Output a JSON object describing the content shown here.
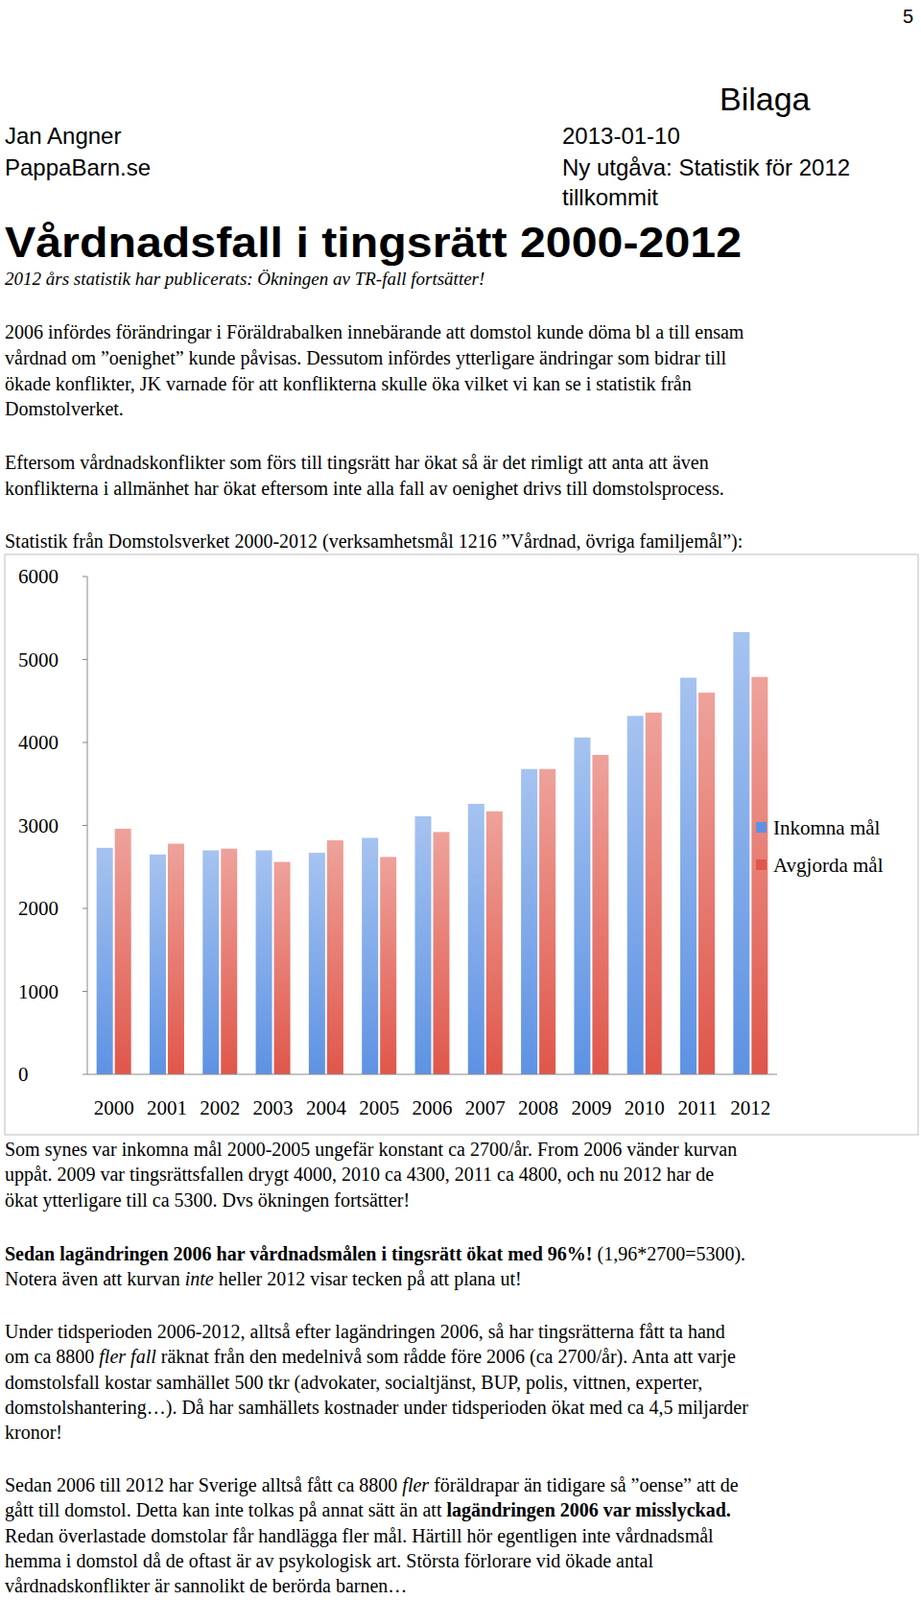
{
  "page_number": "5",
  "header": {
    "annex": "Bilaga",
    "author": "Jan Angner",
    "site": "PappaBarn.se",
    "date": "2013-01-10",
    "edition": [
      "Ny utgåva: Statistik för 2012",
      "tillkommit"
    ]
  },
  "title": "Vårdnadsfall i tingsrätt 2000-2012",
  "subtitle": "2012 års statistik har publicerats: Ökningen av TR-fall fortsätter!",
  "intro": [
    [
      [
        "2006 infördes förändringar i Föräldrabalken innebärande att domstol kunde döma bl a till ensam"
      ],
      [
        "vårdnad om ”oenighet” kunde påvisas. Dessutom infördes ytterligare ändringar som bidrar till"
      ],
      [
        "ökade konflikter, JK varnade för att konflikterna skulle öka vilket vi kan se i statistik från"
      ],
      [
        "Domstolverket."
      ]
    ],
    [
      [
        "Eftersom vårdnadskonflikter som förs till tingsrätt har ökat så är det rimligt att anta att även"
      ],
      [
        "konflikterna i allmänhet har ökat eftersom inte alla fall av oenighet drivs till domstolsprocess."
      ]
    ]
  ],
  "chart_data": {
    "type": "bar",
    "title": "Statistik från Domstolsverket 2000-2012 (verksamhetsmål 1216 ”Vårdnad, övriga familjemål”):",
    "categories": [
      "2000",
      "2001",
      "2002",
      "2003",
      "2004",
      "2005",
      "2006",
      "2007",
      "2008",
      "2009",
      "2010",
      "2011",
      "2012"
    ],
    "series": [
      {
        "name": "Inkomna mål",
        "color": "#5d92e3",
        "values": [
          2730,
          2650,
          2700,
          2700,
          2670,
          2850,
          3110,
          3260,
          3680,
          4060,
          4320,
          4780,
          5330
        ]
      },
      {
        "name": "Avgjorda mål",
        "color": "#e0564a",
        "values": [
          2960,
          2780,
          2720,
          2560,
          2820,
          2620,
          2920,
          3170,
          3680,
          3850,
          4360,
          4600,
          4790
        ]
      }
    ],
    "ylim": [
      0,
      6000
    ],
    "yticks": [
      0,
      1000,
      2000,
      3000,
      4000,
      5000,
      6000
    ],
    "grid": false,
    "legend": "right"
  },
  "analysis": [
    [
      [
        "Som synes var inkomna mål 2000-2005 ungefär konstant ca 2700/år. From 2006 vänder kurvan"
      ],
      [
        "uppåt. 2009 var tingsrättsfallen drygt 4000, 2010 ca 4300, 2011 ca 4800, och nu 2012 har de"
      ],
      [
        "ökat ytterligare till ca 5300. Dvs ökningen fortsätter!"
      ]
    ],
    [
      [
        {
          "text": "Sedan lagändringen 2006 har vårdnadsmålen i tingsrätt ökat med 96%!",
          "style": "bold"
        },
        " (1,96*2700=5300)."
      ],
      [
        "Notera även att kurvan ",
        {
          "text": "inte",
          "style": "italic"
        },
        " heller 2012 visar tecken på att plana ut!"
      ]
    ],
    [
      [
        "Under tidsperioden 2006-2012, alltså efter lagändringen 2006, så har tingsrätterna fått ta hand"
      ],
      [
        "om ca 8800 ",
        {
          "text": "fler fall",
          "style": "italic"
        },
        " räknat från den medelnivå som rådde före 2006 (ca 2700/år). Anta att varje"
      ],
      [
        "domstolsfall kostar samhället 500 tkr (advokater, socialtjänst, BUP, polis, vittnen, experter,"
      ],
      [
        "domstolshantering…). Då har samhällets kostnader under tidsperioden ökat med ca 4,5 miljarder"
      ],
      [
        "kronor!"
      ]
    ],
    [
      [
        "Sedan 2006 till 2012 har Sverige alltså fått ca 8800 ",
        {
          "text": "fler",
          "style": "italic"
        },
        " föräldrapar än tidigare så ”oense” att de"
      ],
      [
        "gått till domstol. Detta kan inte tolkas på annat sätt än att ",
        {
          "text": "lagändringen 2006 var misslyckad.",
          "style": "bold"
        }
      ],
      [
        "Redan överlastade domstolar får handlägga fler mål. Härtill hör egentligen inte vårdnadsmål"
      ],
      [
        "hemma i domstol då de oftast är av psykologisk art. Största förlorare vid ökade antal"
      ],
      [
        "vårdnadskonflikter är sannolikt de berörda barnen…"
      ]
    ]
  ]
}
